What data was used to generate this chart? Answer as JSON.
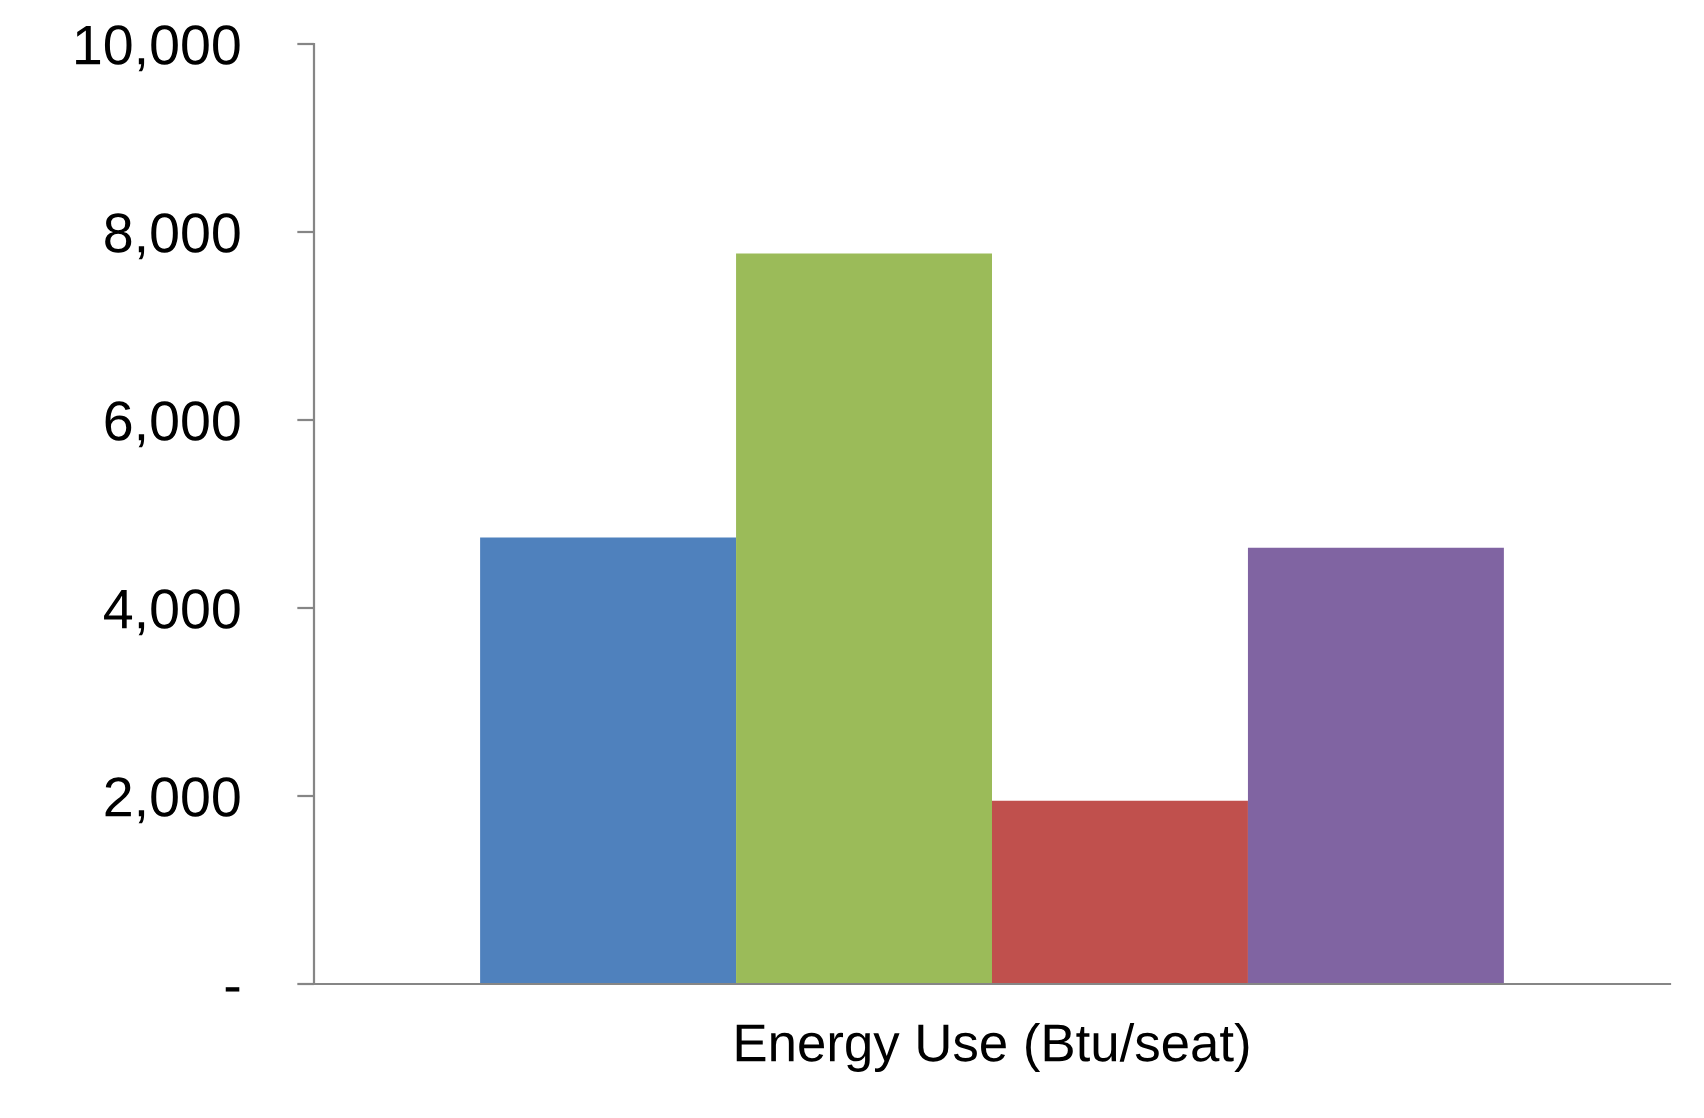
{
  "chart_data": {
    "type": "bar",
    "categories": [
      "Energy Use (Btu/seat)"
    ],
    "series": [
      {
        "color": "#4f81bd",
        "values": [
          4750
        ]
      },
      {
        "color": "#9bbb59",
        "values": [
          7770
        ]
      },
      {
        "color": "#c0504d",
        "values": [
          1950
        ]
      },
      {
        "color": "#8064a2",
        "values": [
          4640
        ]
      }
    ],
    "ylim": [
      0,
      10000
    ],
    "yticks": [
      {
        "value": 0,
        "label": "-"
      },
      {
        "value": 2000,
        "label": "2,000"
      },
      {
        "value": 4000,
        "label": "4,000"
      },
      {
        "value": 6000,
        "label": "6,000"
      },
      {
        "value": 8000,
        "label": "8,000"
      },
      {
        "value": 10000,
        "label": "10,000"
      }
    ],
    "grid": false,
    "legend": false
  }
}
